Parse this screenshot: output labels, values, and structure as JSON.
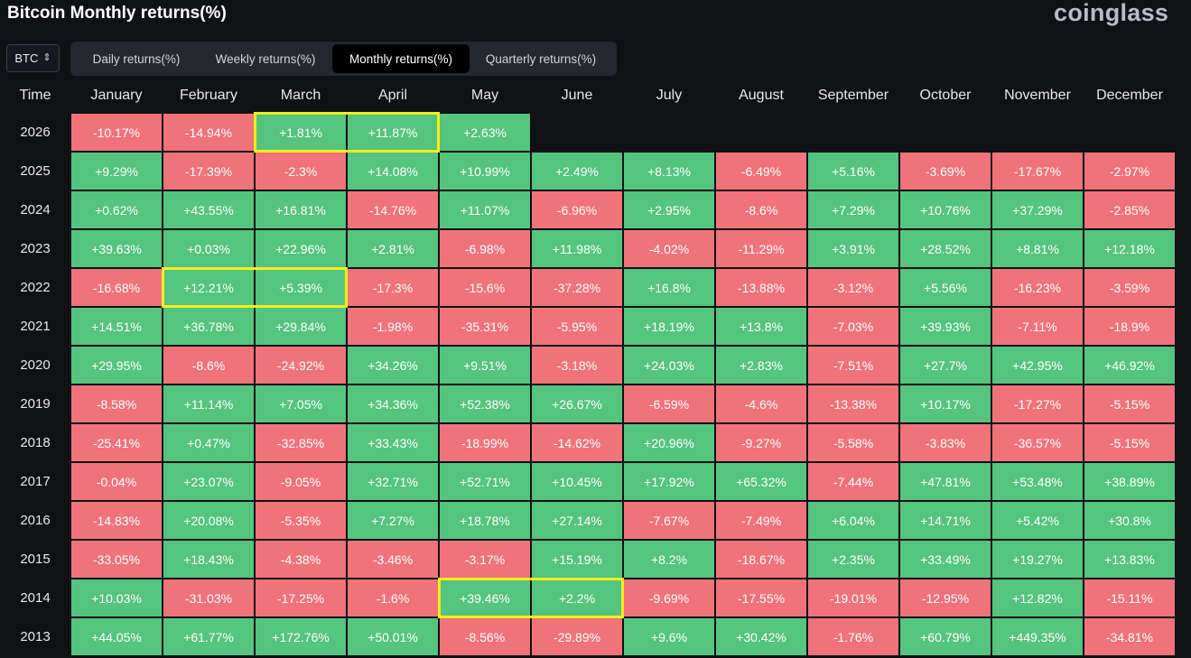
{
  "header": {
    "title": "Bitcoin Monthly returns(%)",
    "brand": "coinglass"
  },
  "asset_select": {
    "value": "BTC",
    "icon": "chevron-up-down-icon"
  },
  "tabs": [
    {
      "label": "Daily returns(%)",
      "active": false
    },
    {
      "label": "Weekly returns(%)",
      "active": false
    },
    {
      "label": "Monthly returns(%)",
      "active": true
    },
    {
      "label": "Quarterly returns(%)",
      "active": false
    }
  ],
  "table": {
    "year_header": "Time",
    "months": [
      "January",
      "February",
      "March",
      "April",
      "May",
      "June",
      "July",
      "August",
      "September",
      "October",
      "November",
      "December"
    ],
    "colors": {
      "positive": "#55c47e",
      "negative": "#f0737a",
      "highlight": "#f6ee17"
    },
    "rows": [
      {
        "year": "2026",
        "values": [
          "-10.17%",
          "-14.94%",
          "+1.81%",
          "+11.87%",
          "+2.63%",
          "",
          "",
          "",
          "",
          "",
          "",
          ""
        ]
      },
      {
        "year": "2025",
        "values": [
          "+9.29%",
          "-17.39%",
          "-2.3%",
          "+14.08%",
          "+10.99%",
          "+2.49%",
          "+8.13%",
          "-6.49%",
          "+5.16%",
          "-3.69%",
          "-17.67%",
          "-2.97%"
        ]
      },
      {
        "year": "2024",
        "values": [
          "+0.62%",
          "+43.55%",
          "+16.81%",
          "-14.76%",
          "+11.07%",
          "-6.96%",
          "+2.95%",
          "-8.6%",
          "+7.29%",
          "+10.76%",
          "+37.29%",
          "-2.85%"
        ]
      },
      {
        "year": "2023",
        "values": [
          "+39.63%",
          "+0.03%",
          "+22.96%",
          "+2.81%",
          "-6.98%",
          "+11.98%",
          "-4.02%",
          "-11.29%",
          "+3.91%",
          "+28.52%",
          "+8.81%",
          "+12.18%"
        ]
      },
      {
        "year": "2022",
        "values": [
          "-16.68%",
          "+12.21%",
          "+5.39%",
          "-17.3%",
          "-15.6%",
          "-37.28%",
          "+16.8%",
          "-13.88%",
          "-3.12%",
          "+5.56%",
          "-16.23%",
          "-3.59%"
        ]
      },
      {
        "year": "2021",
        "values": [
          "+14.51%",
          "+36.78%",
          "+29.84%",
          "-1.98%",
          "-35.31%",
          "-5.95%",
          "+18.19%",
          "+13.8%",
          "-7.03%",
          "+39.93%",
          "-7.11%",
          "-18.9%"
        ]
      },
      {
        "year": "2020",
        "values": [
          "+29.95%",
          "-8.6%",
          "-24.92%",
          "+34.26%",
          "+9.51%",
          "-3.18%",
          "+24.03%",
          "+2.83%",
          "-7.51%",
          "+27.7%",
          "+42.95%",
          "+46.92%"
        ]
      },
      {
        "year": "2019",
        "values": [
          "-8.58%",
          "+11.14%",
          "+7.05%",
          "+34.36%",
          "+52.38%",
          "+26.67%",
          "-6.59%",
          "-4.6%",
          "-13.38%",
          "+10.17%",
          "-17.27%",
          "-5.15%"
        ]
      },
      {
        "year": "2018",
        "values": [
          "-25.41%",
          "+0.47%",
          "-32.85%",
          "+33.43%",
          "-18.99%",
          "-14.62%",
          "+20.96%",
          "-9.27%",
          "-5.58%",
          "-3.83%",
          "-36.57%",
          "-5.15%"
        ]
      },
      {
        "year": "2017",
        "values": [
          "-0.04%",
          "+23.07%",
          "-9.05%",
          "+32.71%",
          "+52.71%",
          "+10.45%",
          "+17.92%",
          "+65.32%",
          "-7.44%",
          "+47.81%",
          "+53.48%",
          "+38.89%"
        ]
      },
      {
        "year": "2016",
        "values": [
          "-14.83%",
          "+20.08%",
          "-5.35%",
          "+7.27%",
          "+18.78%",
          "+27.14%",
          "-7.67%",
          "-7.49%",
          "+6.04%",
          "+14.71%",
          "+5.42%",
          "+30.8%"
        ]
      },
      {
        "year": "2015",
        "values": [
          "-33.05%",
          "+18.43%",
          "-4.38%",
          "-3.46%",
          "-3.17%",
          "+15.19%",
          "+8.2%",
          "-18.67%",
          "+2.35%",
          "+33.49%",
          "+19.27%",
          "+13.83%"
        ]
      },
      {
        "year": "2014",
        "values": [
          "+10.03%",
          "-31.03%",
          "-17.25%",
          "-1.6%",
          "+39.46%",
          "+2.2%",
          "-9.69%",
          "-17.55%",
          "-19.01%",
          "-12.95%",
          "+12.82%",
          "-15.11%"
        ]
      },
      {
        "year": "2013",
        "values": [
          "+44.05%",
          "+61.77%",
          "+172.76%",
          "+50.01%",
          "-8.56%",
          "-29.89%",
          "+9.6%",
          "+30.42%",
          "-1.76%",
          "+60.79%",
          "+449.35%",
          "-34.81%"
        ]
      }
    ],
    "highlights": [
      {
        "year": "2026",
        "months": [
          "March",
          "April"
        ]
      },
      {
        "year": "2022",
        "months": [
          "February",
          "March"
        ]
      },
      {
        "year": "2014",
        "months": [
          "May",
          "June"
        ]
      }
    ]
  }
}
